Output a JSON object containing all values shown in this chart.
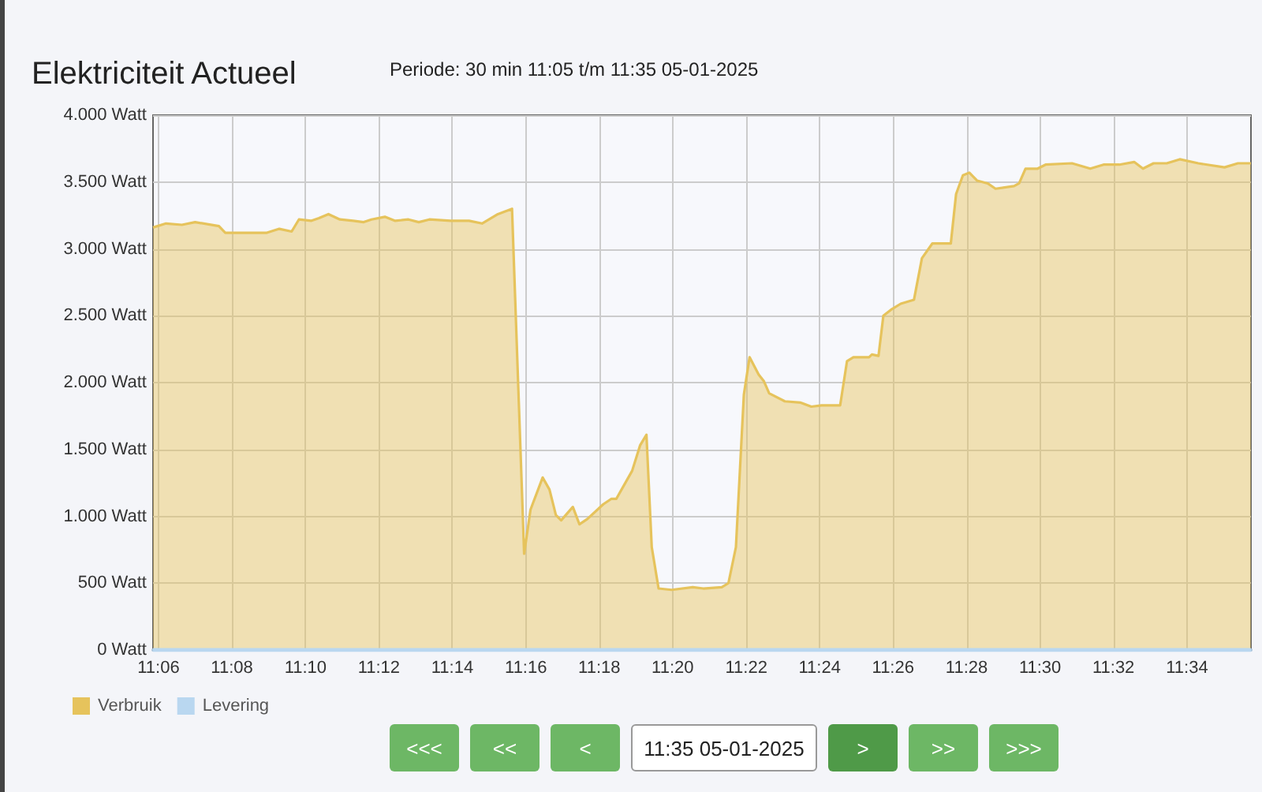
{
  "chart_data": {
    "type": "area",
    "title": "Elektriciteit Actueel",
    "subtitle": "Periode: 30 min 11:05 t/m 11:35 05-01-2025",
    "xlim": [
      11.0975,
      11.5957
    ],
    "xticks": [
      {
        "value": 11.1,
        "label": "11:06"
      },
      {
        "value": 11.1333,
        "label": "11:08"
      },
      {
        "value": 11.1667,
        "label": "11:10"
      },
      {
        "value": 11.2,
        "label": "11:12"
      },
      {
        "value": 11.2333,
        "label": "11:14"
      },
      {
        "value": 11.2667,
        "label": "11:16"
      },
      {
        "value": 11.3,
        "label": "11:18"
      },
      {
        "value": 11.3333,
        "label": "11:20"
      },
      {
        "value": 11.3667,
        "label": "11:22"
      },
      {
        "value": 11.4,
        "label": "11:24"
      },
      {
        "value": 11.4333,
        "label": "11:26"
      },
      {
        "value": 11.4667,
        "label": "11:28"
      },
      {
        "value": 11.5,
        "label": "11:30"
      },
      {
        "value": 11.5333,
        "label": "11:32"
      },
      {
        "value": 11.5667,
        "label": "11:34"
      }
    ],
    "ylim": [
      0,
      4000
    ],
    "yticks": [
      {
        "value": 0,
        "label": "0 Watt"
      },
      {
        "value": 500,
        "label": "500 Watt"
      },
      {
        "value": 1000,
        "label": "1.000 Watt"
      },
      {
        "value": 1500,
        "label": "1.500 Watt"
      },
      {
        "value": 2000,
        "label": "2.000 Watt"
      },
      {
        "value": 2500,
        "label": "2.500 Watt"
      },
      {
        "value": 3000,
        "label": "3.000 Watt"
      },
      {
        "value": 3500,
        "label": "3.500 Watt"
      },
      {
        "value": 4000,
        "label": "4.000 Watt"
      }
    ],
    "series": [
      {
        "name": "Verbruik",
        "color": "#e6c35c",
        "x": [
          11.0975,
          11.1034,
          11.1106,
          11.1166,
          11.1274,
          11.1303,
          11.1417,
          11.1489,
          11.1548,
          11.1604,
          11.1637,
          11.1692,
          11.1728,
          11.1771,
          11.1823,
          11.1883,
          11.1931,
          11.1966,
          11.2027,
          11.2074,
          11.2134,
          11.2181,
          11.2229,
          11.2325,
          11.2409,
          11.2468,
          11.254,
          11.2604,
          11.2659,
          11.2688,
          11.2743,
          11.2774,
          11.2803,
          11.2827,
          11.288,
          11.291,
          11.2946,
          11.3018,
          11.3054,
          11.3077,
          11.3149,
          11.3185,
          11.3214,
          11.3238,
          11.3269,
          11.3328,
          11.3424,
          11.3472,
          11.3556,
          11.3586,
          11.362,
          11.3656,
          11.3682,
          11.3723,
          11.3747,
          11.3771,
          11.3842,
          11.3914,
          11.3962,
          11.4009,
          11.4093,
          11.4124,
          11.4153,
          11.4224,
          11.4237,
          11.4267,
          11.4289,
          11.4328,
          11.4368,
          11.4428,
          11.4464,
          11.4511,
          11.4595,
          11.4619,
          11.465,
          11.4679,
          11.4715,
          11.4762,
          11.4798,
          11.4882,
          11.4905,
          11.4934,
          11.4989,
          11.5025,
          11.5145,
          11.5228,
          11.5288,
          11.536,
          11.5427,
          11.5467,
          11.5515,
          11.5575,
          11.5634,
          11.5718,
          11.5837,
          11.5898,
          11.5957
        ],
        "values": [
          3160,
          3190,
          3180,
          3200,
          3170,
          3120,
          3120,
          3120,
          3150,
          3130,
          3220,
          3210,
          3230,
          3260,
          3220,
          3210,
          3200,
          3220,
          3240,
          3210,
          3220,
          3200,
          3220,
          3210,
          3210,
          3190,
          3260,
          3300,
          720,
          1050,
          1290,
          1200,
          1010,
          970,
          1070,
          940,
          980,
          1090,
          1130,
          1130,
          1340,
          1530,
          1610,
          770,
          460,
          450,
          470,
          460,
          470,
          500,
          770,
          1910,
          2190,
          2060,
          2010,
          1920,
          1860,
          1850,
          1820,
          1830,
          1830,
          2160,
          2190,
          2190,
          2210,
          2200,
          2500,
          2550,
          2590,
          2620,
          2930,
          3040,
          3040,
          3410,
          3550,
          3570,
          3510,
          3490,
          3450,
          3470,
          3490,
          3600,
          3600,
          3630,
          3640,
          3600,
          3630,
          3630,
          3650,
          3600,
          3640,
          3640,
          3670,
          3640,
          3610,
          3640,
          3640
        ]
      },
      {
        "name": "Levering",
        "type": "line",
        "color": "#b9d7f0",
        "x": [
          11.0975,
          11.5957
        ],
        "values": [
          0,
          0
        ]
      }
    ],
    "grid": true,
    "legend": "bottom left",
    "marker": "none",
    "line_style": "solid",
    "annotations": [
      "<<<",
      "<<",
      "<",
      "11:35 05-01-2025",
      ">",
      ">>",
      ">>>"
    ]
  }
}
